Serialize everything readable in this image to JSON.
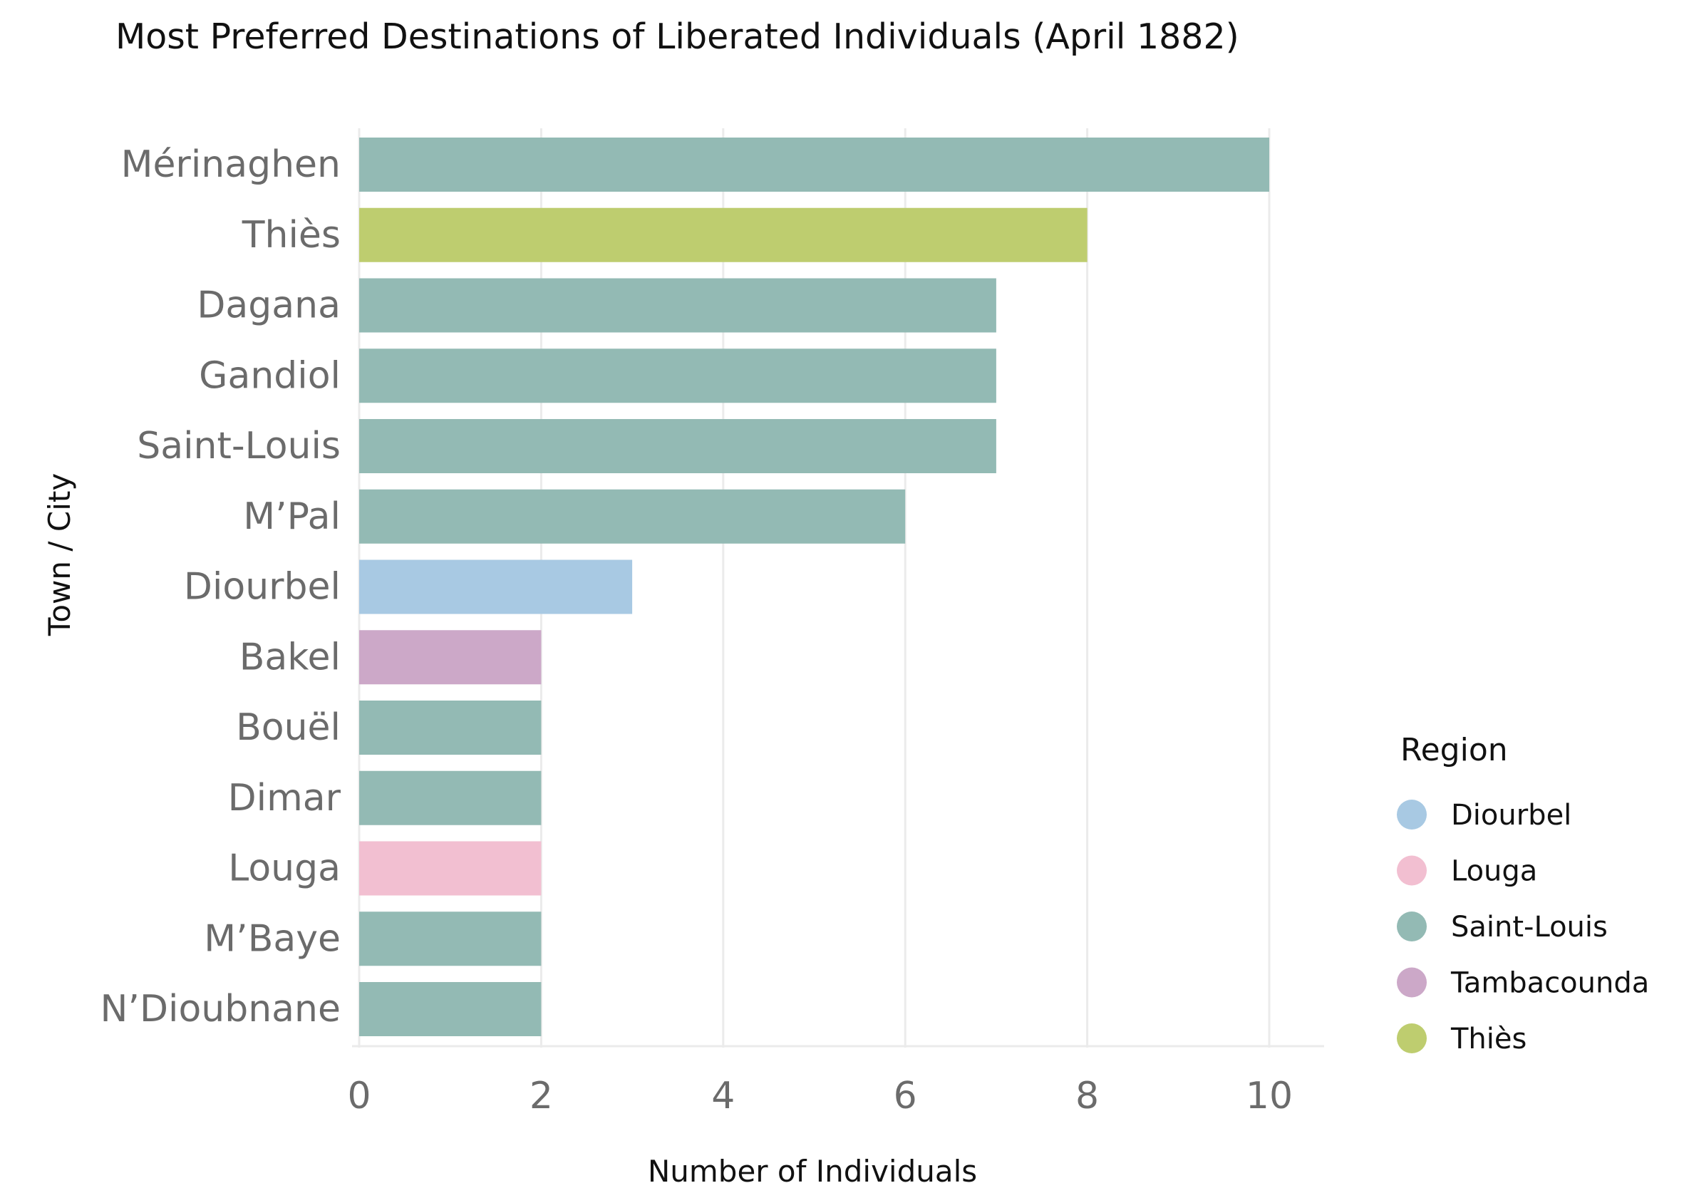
{
  "chart_data": {
    "type": "bar",
    "orientation": "horizontal",
    "title": "Most Preferred Destinations of Liberated Individuals (April 1882)",
    "xlabel": "Number of Individuals",
    "ylabel": "Town / City",
    "xlim": [
      0,
      10.6
    ],
    "xticks": [
      0,
      2,
      4,
      6,
      8,
      10
    ],
    "grid": true,
    "legend": {
      "title": "Region",
      "placement": "right",
      "entries": [
        {
          "label": "Diourbel",
          "color": "#a8c9e3"
        },
        {
          "label": "Louga",
          "color": "#f2bfd1"
        },
        {
          "label": "Saint-Louis",
          "color": "#93bab4"
        },
        {
          "label": "Tambacounda",
          "color": "#cca8c8"
        },
        {
          "label": "Thiès",
          "color": "#becd6f"
        }
      ]
    },
    "categories": [
      "Mérinaghen",
      "Thiès",
      "Dagana",
      "Gandiol",
      "Saint-Louis",
      "M’Pal",
      "Diourbel",
      "Bakel",
      "Bouël",
      "Dimar",
      "Louga",
      "M’Baye",
      "N’Dioubnane"
    ],
    "values": [
      10,
      8,
      7,
      7,
      7,
      6,
      3,
      2,
      2,
      2,
      2,
      2,
      2
    ],
    "regions": [
      "Saint-Louis",
      "Thiès",
      "Saint-Louis",
      "Saint-Louis",
      "Saint-Louis",
      "Saint-Louis",
      "Diourbel",
      "Tambacounda",
      "Saint-Louis",
      "Saint-Louis",
      "Louga",
      "Saint-Louis",
      "Saint-Louis"
    ]
  }
}
